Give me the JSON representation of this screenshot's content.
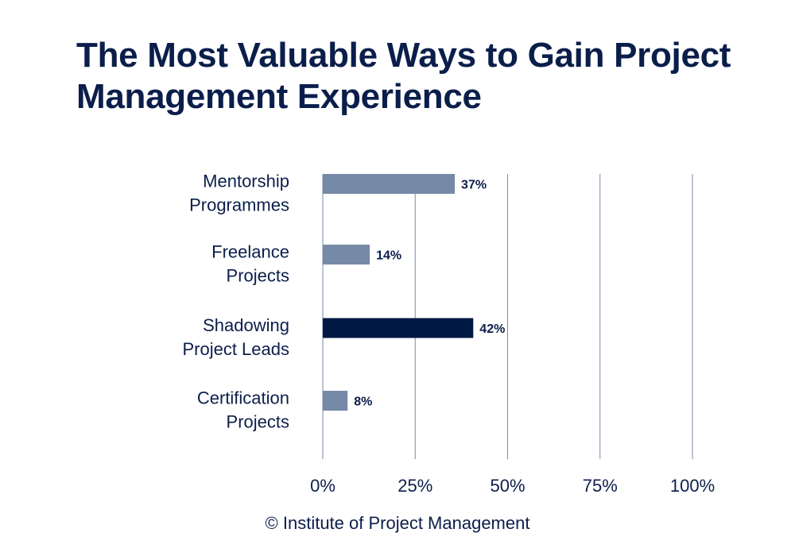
{
  "chart_data": {
    "type": "bar",
    "orientation": "horizontal",
    "title": "The Most Valuable Ways to Gain Project Management Experience",
    "categories": [
      [
        "Mentorship",
        "Programmes"
      ],
      [
        "Freelance",
        "Projects"
      ],
      [
        "Shadowing",
        "Project Leads"
      ],
      [
        "Certification",
        "Projects"
      ]
    ],
    "values": [
      37,
      14,
      42,
      8
    ],
    "data_labels": [
      "37%",
      "14%",
      "42%",
      "8%"
    ],
    "highlighted_index": 2,
    "xlim": [
      0,
      100
    ],
    "xticks": [
      0,
      25,
      50,
      75,
      100
    ],
    "xtick_labels": [
      "0%",
      "25%",
      "50%",
      "75%",
      "100%"
    ],
    "grid": "vertical",
    "xlabel": "",
    "ylabel": "",
    "colors": {
      "bar": "#7689a6",
      "highlight": "#001a45",
      "grid": "#7a8aa8",
      "text": "#0b1e4b"
    }
  },
  "source": "© Institute of Project Management"
}
